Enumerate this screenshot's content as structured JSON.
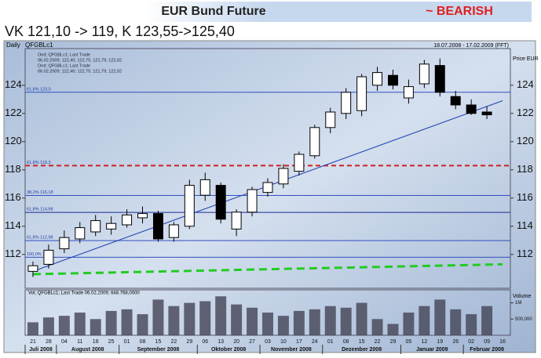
{
  "header": {
    "title": "EUR Bund Future",
    "signal": "~ BEARISH",
    "subtitle": "VK 121,10 -> 119, K 123,55->125,40"
  },
  "chart_data": {
    "type": "candlestick",
    "period": "Daily",
    "symbol": "QFGBLc1",
    "range_text": "18.07.2008 - 17.02.2009 (FFT)",
    "axis_label": "Price EUR",
    "info_lines": [
      "Ond; QFGBLc1; Last Trade",
      "06.02.2009; 122,40; 122,75; 121,79; 122,02",
      "Ond; QFGBLc1; Last Trade",
      "06.02.2009; 122,40; 122,75; 121,79; 122,02"
    ],
    "categories": [
      "21",
      "28",
      "04",
      "11",
      "18",
      "25",
      "01",
      "08",
      "15",
      "22",
      "29",
      "06",
      "13",
      "20",
      "27",
      "03",
      "10",
      "17",
      "24",
      "01",
      "08",
      "15",
      "22",
      "29",
      "05",
      "12",
      "19",
      "26",
      "02",
      "09",
      "16"
    ],
    "months": [
      "Juli 2008",
      "August 2008",
      "September 2008",
      "Oktober 2008",
      "November 2008",
      "Dezember 2008",
      "Januar 2009",
      "Februar 2009"
    ],
    "open": [
      110.8,
      111.3,
      112.4,
      113.1,
      113.6,
      113.8,
      114.1,
      114.6,
      114.9,
      113.2,
      114.0,
      116.2,
      116.9,
      113.8,
      115.0,
      116.4,
      117.0,
      117.9,
      119.0,
      121.0,
      122.0,
      122.2,
      124.0,
      124.7,
      123.1,
      124.1,
      125.4,
      123.2,
      122.6,
      122.1,
      null
    ],
    "high": [
      111.5,
      112.7,
      113.7,
      114.3,
      114.8,
      114.7,
      115.2,
      115.4,
      115.1,
      114.3,
      117.3,
      117.8,
      117.1,
      115.2,
      116.8,
      117.4,
      118.4,
      119.3,
      121.2,
      122.4,
      123.8,
      124.8,
      125.3,
      125.1,
      124.4,
      125.8,
      125.9,
      123.6,
      123.0,
      122.5,
      null
    ],
    "low": [
      110.4,
      111.0,
      112.1,
      112.8,
      113.3,
      113.4,
      113.9,
      114.2,
      112.9,
      112.9,
      113.8,
      115.8,
      114.2,
      113.3,
      114.7,
      116.1,
      116.7,
      117.6,
      118.8,
      120.6,
      121.6,
      121.8,
      123.6,
      123.7,
      122.7,
      123.8,
      123.2,
      122.3,
      121.9,
      121.6,
      null
    ],
    "close": [
      111.2,
      112.3,
      113.2,
      113.9,
      114.4,
      114.2,
      114.8,
      114.9,
      113.1,
      114.1,
      116.9,
      117.3,
      114.5,
      115.0,
      116.6,
      117.1,
      118.1,
      119.1,
      121.0,
      122.1,
      123.5,
      124.6,
      124.9,
      124.0,
      123.9,
      125.5,
      123.5,
      122.6,
      122.0,
      121.9,
      null
    ],
    "volume": [
      400000,
      550000,
      600000,
      700000,
      500000,
      750000,
      800000,
      650000,
      1100000,
      900000,
      1000000,
      1050000,
      1200000,
      950000,
      850000,
      700000,
      600000,
      750000,
      800000,
      900000,
      850000,
      1000000,
      500000,
      350000,
      700000,
      900000,
      1100000,
      800000,
      650000,
      900000,
      null
    ],
    "volume_label": "Volume",
    "volume_info": "Vol; QFGBLc1; Last Trade 06.02.2009; 648.768,0000",
    "ylim": [
      109.6,
      126.6
    ],
    "yticks": [
      112,
      114,
      116,
      118,
      120,
      122,
      124
    ],
    "vlim": [
      0,
      1400000
    ],
    "vticks": [
      {
        "value": 500000,
        "label": "500,000"
      },
      {
        "value": 1000000,
        "label": "1M"
      }
    ],
    "levels": [
      {
        "value": 118.3,
        "color": "#d02020",
        "dash": true,
        "label": "61,8% 118,3"
      },
      {
        "value": 116.18,
        "color": "#3050c0",
        "dash": false,
        "label": "38,2% 116,18"
      },
      {
        "value": 114.98,
        "color": "#1a2a90",
        "dash": false,
        "label": "61,8% 114,98"
      },
      {
        "value": 112.98,
        "color": "#3050c0",
        "dash": false,
        "label": "61,8% 112,98"
      },
      {
        "value": 111.8,
        "color": "#3050c0",
        "dash": false,
        "label": "100,0% 111,8"
      },
      {
        "value": 123.5,
        "color": "#3050c0",
        "dash": false,
        "label": "61,8% 123,5"
      }
    ],
    "trendlines": [
      {
        "from": 110.6,
        "to": 111.3,
        "color": "#22cc22",
        "dash": true
      },
      {
        "from": 110.8,
        "to": 122.9,
        "color": "#2040b0",
        "dash": false
      }
    ],
    "candle_up": "#ffffff",
    "candle_down": "#000000"
  }
}
